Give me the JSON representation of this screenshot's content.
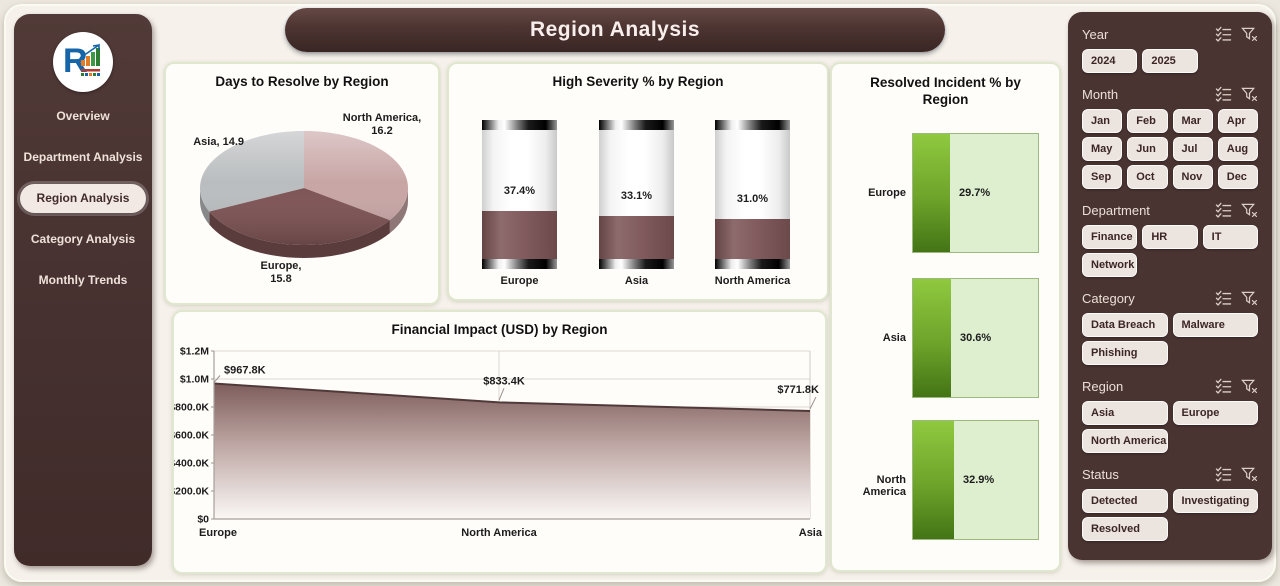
{
  "app": {
    "title": "Region Analysis"
  },
  "sidebar": {
    "items": [
      {
        "label": "Overview",
        "active": false
      },
      {
        "label": "Department Analysis",
        "active": false
      },
      {
        "label": "Region Analysis",
        "active": true
      },
      {
        "label": "Category Analysis",
        "active": false
      },
      {
        "label": "Monthly Trends",
        "active": false
      }
    ]
  },
  "chart_data": [
    {
      "type": "pie",
      "title": "Days to Resolve by Region",
      "start": "top",
      "direction": "clockwise",
      "slices": [
        {
          "label": "North America",
          "value": 16.2,
          "data_label": "North America, 16.2",
          "color": "#c8a5a5"
        },
        {
          "label": "Europe",
          "value": 15.8,
          "data_label": "Europe, 15.8",
          "color": "#7d5354"
        },
        {
          "label": "Asia",
          "value": 14.9,
          "data_label": "Asia, 14.9",
          "color": "#babdbf"
        }
      ]
    },
    {
      "type": "bar",
      "style": "cylinder",
      "title": "High Severity % by Region",
      "categories": [
        "Europe",
        "Asia",
        "North America"
      ],
      "values": [
        37.4,
        33.1,
        31.0
      ],
      "value_labels": [
        "37.4%",
        "33.1%",
        "31.0%"
      ],
      "ylim": [
        0,
        100
      ],
      "bar_color": "#7b5355"
    },
    {
      "type": "bar",
      "orientation": "horizontal",
      "title": "Resolved Incident % by Region",
      "categories": [
        "Europe",
        "Asia",
        "North America"
      ],
      "values": [
        29.7,
        30.6,
        32.9
      ],
      "value_labels": [
        "29.7%",
        "30.6%",
        "32.9%"
      ],
      "xlim": [
        0,
        100
      ],
      "bar_color": "#6da32a",
      "track_color": "#ddefcf"
    },
    {
      "type": "area",
      "title": "Financial Impact (USD) by Region",
      "categories": [
        "Europe",
        "North America",
        "Asia"
      ],
      "values": [
        967800,
        833400,
        771800
      ],
      "value_labels": [
        "$967.8K",
        "$833.4K",
        "$771.8K"
      ],
      "y_tick_labels": [
        "$0",
        "$200.0K",
        "$400.0K",
        "$600.0K",
        "$800.0K",
        "$1.0M",
        "$1.2M"
      ],
      "ylim": [
        0,
        1200000
      ],
      "grid": true,
      "line_color": "#503a39"
    }
  ],
  "filters": [
    {
      "title": "Year",
      "items": [
        "2024",
        "2025"
      ]
    },
    {
      "title": "Month",
      "items": [
        "Jan",
        "Feb",
        "Mar",
        "Apr",
        "May",
        "Jun",
        "Jul",
        "Aug",
        "Sep",
        "Oct",
        "Nov",
        "Dec"
      ]
    },
    {
      "title": "Department",
      "items": [
        "Finance",
        "HR",
        "IT",
        "Network"
      ]
    },
    {
      "title": "Category",
      "items": [
        "Data Breach",
        "Malware",
        "Phishing"
      ]
    },
    {
      "title": "Region",
      "items": [
        "Asia",
        "Europe",
        "North America"
      ]
    },
    {
      "title": "Status",
      "items": [
        "Detected",
        "Investigating",
        "Resolved"
      ]
    }
  ],
  "slicer_icons": [
    "multi-select",
    "clear-filter"
  ],
  "colors": {
    "brand_brown": "#4a3431",
    "panel_border_green": "#dfe8cf",
    "pie_north_america": "#c8a5a5",
    "pie_europe": "#7d5354",
    "pie_asia": "#babdbf",
    "severity_fill": "#7b5355",
    "green_light": "#8fc93f",
    "green_dark": "#447416",
    "green_track": "#ddefcf"
  }
}
